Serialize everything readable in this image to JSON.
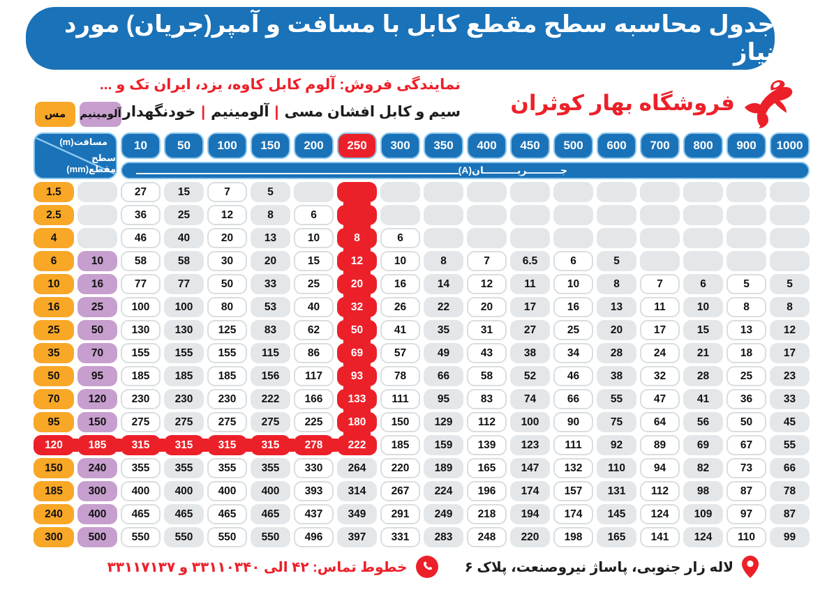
{
  "banner": {
    "title": "جدول محاسبه سطح مقطع کابل با مسافت و آمپر(جریان) مورد نیاز"
  },
  "subheader": {
    "agency_line": "نمایندگی فروش: آلوم کابل کاوه، یزد، ایران تک و ...",
    "products_segments": [
      "سیم و کابل افشان مسی",
      "آلومینیم",
      "خودنگهدار"
    ],
    "products_separator": "|",
    "brand_name": "فروشگاه بهار کوثران"
  },
  "legend": {
    "copper": "مس",
    "aluminum": "آلومینیم"
  },
  "table": {
    "corner_top": "مسافت(m)",
    "corner_bottom": "سطح مقطع(mm)",
    "current_label": "جــــــــــریــــــــــان(A)",
    "distances": [
      "10",
      "50",
      "100",
      "150",
      "200",
      "250",
      "300",
      "350",
      "400",
      "450",
      "500",
      "600",
      "700",
      "800",
      "900",
      "1000"
    ],
    "highlight": {
      "distance": "250",
      "copper_row": "120"
    },
    "rows": [
      {
        "copper": "1.5",
        "aluminum": "",
        "values": [
          "27",
          "15",
          "7",
          "5",
          "",
          "",
          "",
          "",
          "",
          "",
          "",
          "",
          "",
          "",
          "",
          ""
        ]
      },
      {
        "copper": "2.5",
        "aluminum": "",
        "values": [
          "36",
          "25",
          "12",
          "8",
          "6",
          "",
          "",
          "",
          "",
          "",
          "",
          "",
          "",
          "",
          "",
          ""
        ]
      },
      {
        "copper": "4",
        "aluminum": "",
        "values": [
          "46",
          "40",
          "20",
          "13",
          "10",
          "8",
          "6",
          "",
          "",
          "",
          "",
          "",
          "",
          "",
          "",
          ""
        ]
      },
      {
        "copper": "6",
        "aluminum": "10",
        "values": [
          "58",
          "58",
          "30",
          "20",
          "15",
          "12",
          "10",
          "8",
          "7",
          "6.5",
          "6",
          "5",
          "",
          "",
          "",
          ""
        ]
      },
      {
        "copper": "10",
        "aluminum": "16",
        "values": [
          "77",
          "77",
          "50",
          "33",
          "25",
          "20",
          "16",
          "14",
          "12",
          "11",
          "10",
          "8",
          "7",
          "6",
          "5",
          "5"
        ]
      },
      {
        "copper": "16",
        "aluminum": "25",
        "values": [
          "100",
          "100",
          "80",
          "53",
          "40",
          "32",
          "26",
          "22",
          "20",
          "17",
          "16",
          "13",
          "11",
          "10",
          "8",
          "8"
        ]
      },
      {
        "copper": "25",
        "aluminum": "50",
        "values": [
          "130",
          "130",
          "125",
          "83",
          "62",
          "50",
          "41",
          "35",
          "31",
          "27",
          "25",
          "20",
          "17",
          "15",
          "13",
          "12"
        ]
      },
      {
        "copper": "35",
        "aluminum": "70",
        "values": [
          "155",
          "155",
          "155",
          "115",
          "86",
          "69",
          "57",
          "49",
          "43",
          "38",
          "34",
          "28",
          "24",
          "21",
          "18",
          "17"
        ]
      },
      {
        "copper": "50",
        "aluminum": "95",
        "values": [
          "185",
          "185",
          "185",
          "156",
          "117",
          "93",
          "78",
          "66",
          "58",
          "52",
          "46",
          "38",
          "32",
          "28",
          "25",
          "23"
        ]
      },
      {
        "copper": "70",
        "aluminum": "120",
        "values": [
          "230",
          "230",
          "230",
          "222",
          "166",
          "133",
          "111",
          "95",
          "83",
          "74",
          "66",
          "55",
          "47",
          "41",
          "36",
          "33"
        ]
      },
      {
        "copper": "95",
        "aluminum": "150",
        "values": [
          "275",
          "275",
          "275",
          "275",
          "225",
          "180",
          "150",
          "129",
          "112",
          "100",
          "90",
          "75",
          "64",
          "56",
          "50",
          "45"
        ]
      },
      {
        "copper": "120",
        "aluminum": "185",
        "values": [
          "315",
          "315",
          "315",
          "315",
          "278",
          "222",
          "185",
          "159",
          "139",
          "123",
          "111",
          "92",
          "89",
          "69",
          "67",
          "55"
        ]
      },
      {
        "copper": "150",
        "aluminum": "240",
        "values": [
          "355",
          "355",
          "355",
          "355",
          "330",
          "264",
          "220",
          "189",
          "165",
          "147",
          "132",
          "110",
          "94",
          "82",
          "73",
          "66"
        ]
      },
      {
        "copper": "185",
        "aluminum": "300",
        "values": [
          "400",
          "400",
          "400",
          "400",
          "393",
          "314",
          "267",
          "224",
          "196",
          "174",
          "157",
          "131",
          "112",
          "98",
          "87",
          "78"
        ]
      },
      {
        "copper": "240",
        "aluminum": "400",
        "values": [
          "465",
          "465",
          "465",
          "465",
          "437",
          "349",
          "291",
          "249",
          "218",
          "194",
          "174",
          "145",
          "124",
          "109",
          "97",
          "87"
        ]
      },
      {
        "copper": "300",
        "aluminum": "500",
        "values": [
          "550",
          "550",
          "550",
          "550",
          "496",
          "397",
          "331",
          "283",
          "248",
          "220",
          "198",
          "165",
          "141",
          "124",
          "110",
          "99"
        ]
      }
    ]
  },
  "footer": {
    "phones": "خطوط تماس: ۴۲ الی ۳۳۱۱۰۳۴۰ و ۳۳۱۱۷۱۳۷",
    "address": "لاله زار جنوبی، پاساژ نیروصنعت، پلاک ۶"
  },
  "colors": {
    "blue": "#1a72b8",
    "light_blue": "#8cc7ee",
    "red": "#ec2029",
    "orange": "#f8a727",
    "purple": "#c79fce",
    "grey_cell": "#e3e7e9"
  }
}
